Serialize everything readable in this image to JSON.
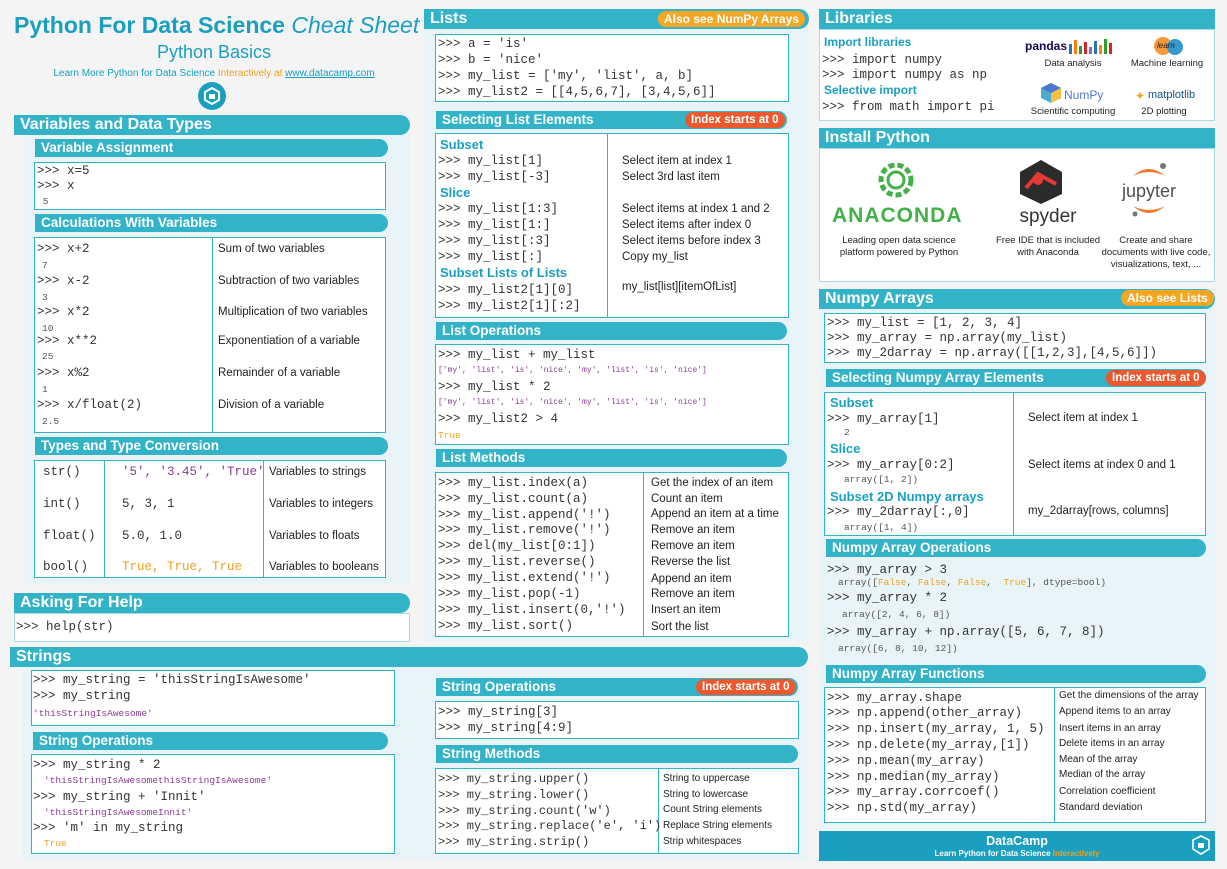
{
  "header": {
    "title_bold": "Python For Data Science",
    "title_italic": "Cheat Sheet",
    "subtitle": "Python Basics",
    "learn_prefix": "Learn More Python for Data Science",
    "learn_interactively": "Interactively",
    "learn_at": "at",
    "learn_url": "www.datacamp.com"
  },
  "variables": {
    "title": "Variables and Data Types",
    "assignment": {
      "title": "Variable Assignment",
      "lines": [
        ">>> x=5",
        ">>> x",
        " 5"
      ]
    },
    "calc": {
      "title": "Calculations With Variables",
      "rows": [
        {
          "code": ">>> x+2",
          "out": "7",
          "desc": "Sum of two variables"
        },
        {
          "code": ">>> x-2",
          "out": "3",
          "desc": "Subtraction of two variables"
        },
        {
          "code": ">>> x*2",
          "out": "10",
          "desc": "Multiplication of two variables"
        },
        {
          "code": ">>> x**2",
          "out": "25",
          "desc": "Exponentiation of a variable"
        },
        {
          "code": ">>> x%2",
          "out": "1",
          "desc": "Remainder of a variable"
        },
        {
          "code": ">>> x/float(2)",
          "out": "2.5",
          "desc": "Division of a variable"
        }
      ]
    },
    "types": {
      "title": "Types and Type Conversion",
      "rows": [
        {
          "fn": "str()",
          "ex": "'5', '3.45', 'True'",
          "desc": "Variables to strings"
        },
        {
          "fn": "int()",
          "ex": "5, 3, 1",
          "desc": "Variables to integers"
        },
        {
          "fn": "float()",
          "ex": "5.0, 1.0",
          "desc": "Variables to floats"
        },
        {
          "fn": "bool()",
          "ex": "True, True, True",
          "desc": "Variables to booleans"
        }
      ]
    }
  },
  "help": {
    "title": "Asking For Help",
    "code": ">>> help(str)"
  },
  "strings": {
    "title": "Strings",
    "intro": [
      ">>> my_string = 'thisStringIsAwesome'",
      ">>> my_string",
      "'thisStringIsAwesome'"
    ],
    "ops_title": "String Operations",
    "ops": [
      ">>> my_string * 2",
      "'thisStringIsAwesomethisStringIsAwesome'",
      ">>> my_string + 'Innit'",
      "'thisStringIsAwesomeInnit'",
      ">>> 'm' in my_string",
      "True"
    ],
    "ops2_title": "String Operations",
    "ops2_badge": "Index starts at 0",
    "ops2": [
      ">>> my_string[3]",
      ">>> my_string[4:9]"
    ],
    "methods_title": "String Methods",
    "methods": [
      {
        "code": ">>> my_string.upper()",
        "desc": "String to uppercase"
      },
      {
        "code": ">>> my_string.lower()",
        "desc": "String to lowercase"
      },
      {
        "code": ">>> my_string.count('w')",
        "desc": "Count String elements"
      },
      {
        "code": ">>> my_string.replace('e', 'i')",
        "desc": "Replace String elements"
      },
      {
        "code": ">>> my_string.strip()",
        "desc": "Strip whitespaces"
      }
    ]
  },
  "lists": {
    "title": "Lists",
    "badge": "Also see NumPy Arrays",
    "intro": [
      ">>> a = 'is'",
      ">>> b = 'nice'",
      ">>> my_list = ['my', 'list', a, b]",
      ">>> my_list2 = [[4,5,6,7], [3,4,5,6]]"
    ],
    "select_title": "Selecting List Elements",
    "select_badge": "Index starts at 0",
    "subset_label": "Subset",
    "subset": [
      {
        "code": ">>> my_list[1]",
        "desc": "Select item at index 1"
      },
      {
        "code": ">>> my_list[-3]",
        "desc": "Select 3rd last item"
      }
    ],
    "slice_label": "Slice",
    "slice": [
      {
        "code": ">>> my_list[1:3]",
        "desc": "Select items at index 1 and 2"
      },
      {
        "code": ">>> my_list[1:]",
        "desc": "Select items after index 0"
      },
      {
        "code": ">>> my_list[:3]",
        "desc": "Select items before index 3"
      },
      {
        "code": ">>> my_list[:]",
        "desc": "Copy my_list"
      }
    ],
    "subsetlists_label": "Subset Lists of Lists",
    "subsetlists": [
      ">>> my_list2[1][0]",
      ">>> my_list2[1][:2]"
    ],
    "subsetlists_desc": "my_list[list][itemOfList]",
    "ops_title": "List Operations",
    "ops": [
      ">>> my_list + my_list",
      "['my', 'list', 'is', 'nice', 'my', 'list', 'is', 'nice']",
      ">>> my_list * 2",
      "['my', 'list', 'is', 'nice', 'my', 'list', 'is', 'nice']",
      ">>> my_list2 > 4",
      "True"
    ],
    "methods_title": "List Methods",
    "methods": [
      {
        "code": ">>> my_list.index(a)",
        "desc": "Get the index of an item"
      },
      {
        "code": ">>> my_list.count(a)",
        "desc": "Count an item"
      },
      {
        "code": ">>> my_list.append('!')",
        "desc": "Append an item at a time"
      },
      {
        "code": ">>> my_list.remove('!')",
        "desc": "Remove an item"
      },
      {
        "code": ">>> del(my_list[0:1])",
        "desc": "Remove an item"
      },
      {
        "code": ">>> my_list.reverse()",
        "desc": "Reverse the list"
      },
      {
        "code": ">>> my_list.extend('!')",
        "desc": "Append an item"
      },
      {
        "code": ">>> my_list.pop(-1)",
        "desc": "Remove an item"
      },
      {
        "code": ">>> my_list.insert(0,'!')",
        "desc": "Insert an item"
      },
      {
        "code": ">>> my_list.sort()",
        "desc": "Sort the list"
      }
    ]
  },
  "libraries": {
    "title": "Libraries",
    "import_label": "Import libraries",
    "imports": [
      ">>> import numpy",
      ">>> import numpy as np"
    ],
    "selective_label": "Selective import",
    "selective": [
      ">>> from math import pi"
    ],
    "logos": [
      {
        "name": "pandas",
        "caption": "Data analysis"
      },
      {
        "name": "learn",
        "caption": "Machine learning"
      },
      {
        "name": "NumPy",
        "caption": "Scientific computing"
      },
      {
        "name": "matplotlib",
        "caption": "2D plotting"
      }
    ]
  },
  "install": {
    "title": "Install Python",
    "anaconda": {
      "name": "ANACONDA",
      "caption": "Leading open data science platform powered by Python"
    },
    "spyder": {
      "name": "spyder",
      "caption": "Free IDE that is included with Anaconda"
    },
    "jupyter": {
      "name": "jupyter",
      "caption": "Create and share documents with live code, visualizations, text, ..."
    }
  },
  "numpy": {
    "title": "Numpy Arrays",
    "badge": "Also see Lists",
    "intro": [
      ">>> my_list = [1, 2, 3, 4]",
      ">>> my_array = np.array(my_list)",
      ">>> my_2darray = np.array([[1,2,3],[4,5,6]])"
    ],
    "select_title": "Selecting Numpy Array Elements",
    "select_badge": "Index starts at 0",
    "subset_label": "Subset",
    "subset_code": ">>> my_array[1]",
    "subset_out": "2",
    "subset_desc": "Select item at index 1",
    "slice_label": "Slice",
    "slice_code": ">>> my_array[0:2]",
    "slice_out": "array([1, 2])",
    "slice_desc": "Select items at index 0 and 1",
    "sub2d_label": "Subset 2D Numpy arrays",
    "sub2d_code": ">>> my_2darray[:,0]",
    "sub2d_out": "array([1, 4])",
    "sub2d_desc": "my_2darray[rows, columns]",
    "ops_title": "Numpy Array Operations",
    "ops": [
      ">>> my_array > 3",
      "array([False, False, False,  True], dtype=bool)",
      ">>> my_array * 2",
      "array([2, 4, 6, 8])",
      ">>> my_array + np.array([5, 6, 7, 8])",
      "array([6, 8, 10, 12])"
    ],
    "funcs_title": "Numpy Array Functions",
    "funcs": [
      {
        "code": ">>> my_array.shape",
        "desc": "Get the dimensions of the array"
      },
      {
        "code": ">>> np.append(other_array)",
        "desc": "Append items to an array"
      },
      {
        "code": ">>> np.insert(my_array, 1, 5)",
        "desc": "Insert items in an array"
      },
      {
        "code": ">>> np.delete(my_array,[1])",
        "desc": "Delete items in an array"
      },
      {
        "code": ">>> np.mean(my_array)",
        "desc": "Mean of the array"
      },
      {
        "code": ">>> np.median(my_array)",
        "desc": "Median of the array"
      },
      {
        "code": ">>> my_array.corrcoef()",
        "desc": "Correlation coefficient"
      },
      {
        "code": ">>> np.std(my_array)",
        "desc": "Standard deviation"
      }
    ]
  },
  "footer": {
    "brand": "DataCamp",
    "tagline_prefix": "Learn Python for Data Science",
    "tagline_interactively": "Interactively"
  },
  "colors": {
    "accent": "#33b3c8",
    "badge_red": "#ea5a2e",
    "badge_orange": "#f5a623",
    "string_purple": "#8a3b94"
  }
}
